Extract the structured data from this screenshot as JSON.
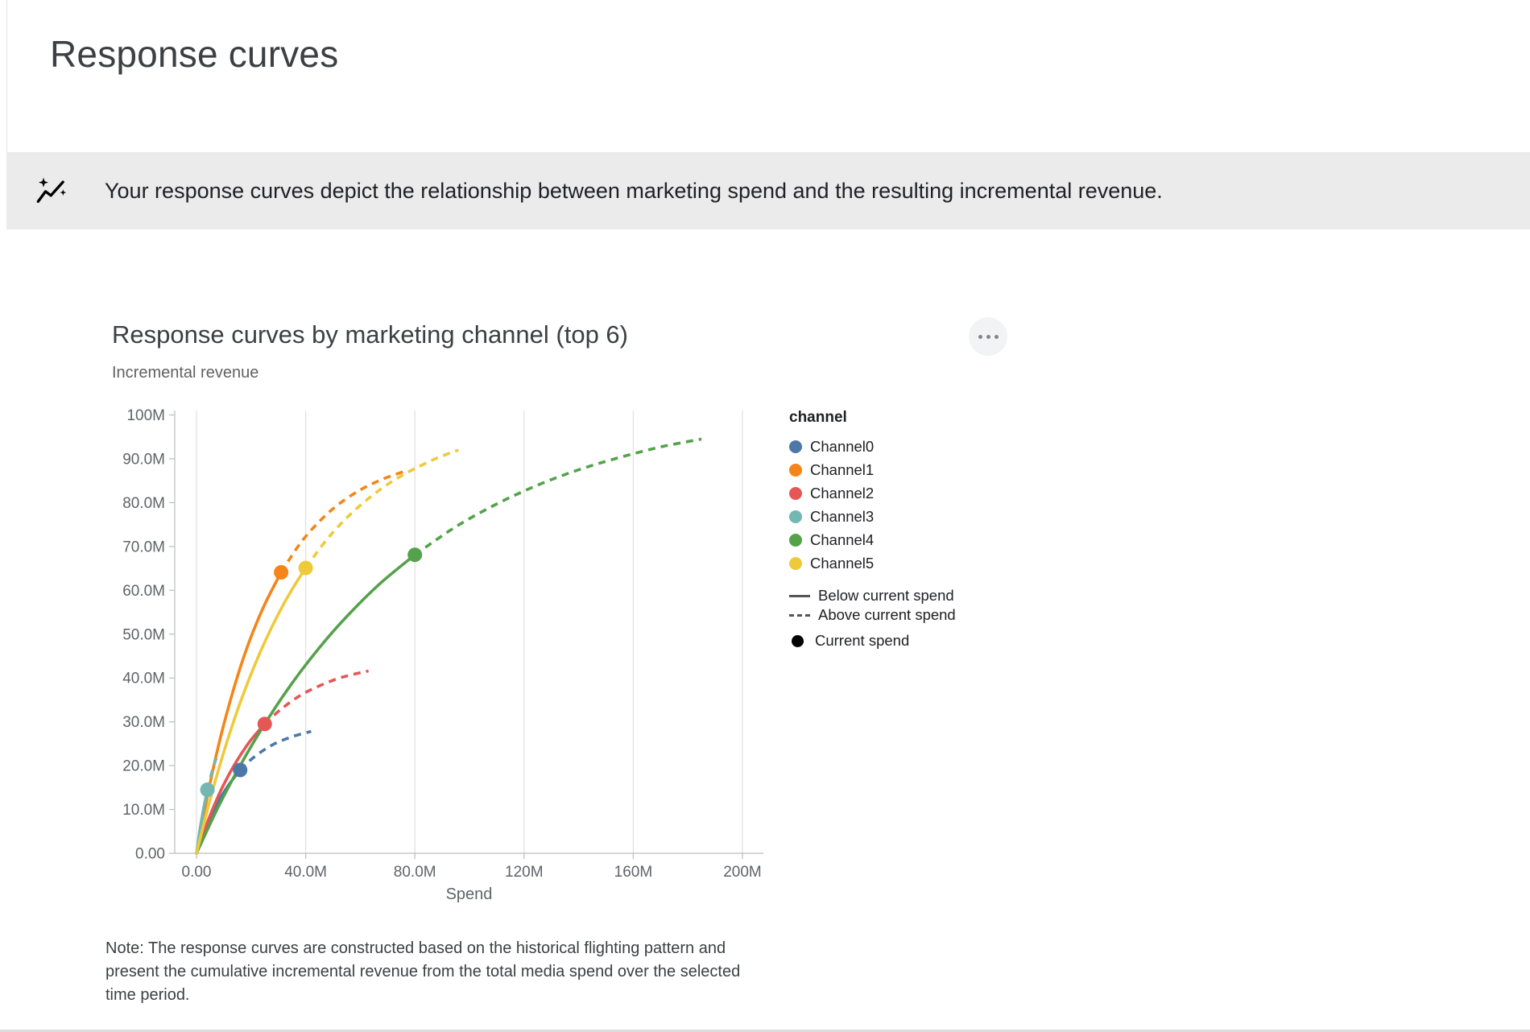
{
  "page": {
    "title": "Response curves"
  },
  "banner": {
    "icon": "insights-icon",
    "text": "Your response curves depict the relationship between marketing spend and the resulting incremental revenue."
  },
  "card": {
    "menu_icon": "more-options-icon",
    "note": "Note: The response curves are constructed based on the historical flighting pattern and present the cumulative incremental revenue from the total media spend over the selected time period."
  },
  "chart_data": {
    "type": "line",
    "title": "Response curves by marketing channel (top 6)",
    "x_axis_label": "Spend",
    "y_axis_label": "Incremental revenue",
    "units": "M = millions",
    "xlim": [
      -8,
      208
    ],
    "ylim": [
      0,
      101
    ],
    "grid": "vertical-only",
    "legend_position": "right",
    "x_ticks": {
      "values": [
        0,
        40,
        80,
        120,
        160,
        200
      ],
      "labels": [
        "0.00",
        "40.0M",
        "80.0M",
        "120M",
        "160M",
        "200M"
      ]
    },
    "y_ticks": {
      "values": [
        0,
        10,
        20,
        30,
        40,
        50,
        60,
        70,
        80,
        90,
        100
      ],
      "labels": [
        "0.00",
        "10.0M",
        "20.0M",
        "30.0M",
        "40.0M",
        "50.0M",
        "60.0M",
        "70.0M",
        "80.0M",
        "90.0M",
        "100M"
      ]
    },
    "legend": {
      "title": "channel",
      "line_styles": [
        {
          "style": "solid",
          "label": "Below current spend"
        },
        {
          "style": "dashed",
          "label": "Above current spend"
        },
        {
          "style": "point",
          "label": "Current spend"
        }
      ]
    },
    "series": [
      {
        "name": "Channel0",
        "color": "#4c78a8",
        "current_spend": [
          16,
          19.0
        ],
        "points_below": [
          [
            0,
            0
          ],
          [
            3,
            5.1
          ],
          [
            6,
            9.4
          ],
          [
            9,
            12.9
          ],
          [
            12,
            15.8
          ],
          [
            16,
            19.0
          ]
        ],
        "points_above": [
          [
            16,
            19.0
          ],
          [
            20,
            21.4
          ],
          [
            25,
            23.7
          ],
          [
            30,
            25.4
          ],
          [
            36,
            26.8
          ],
          [
            42,
            27.8
          ]
        ]
      },
      {
        "name": "Channel1",
        "color": "#f58518",
        "current_spend": [
          31,
          64.1
        ],
        "points_below": [
          [
            0,
            0
          ],
          [
            4,
            13.1
          ],
          [
            8,
            24.4
          ],
          [
            12,
            34.0
          ],
          [
            16,
            42.3
          ],
          [
            20,
            49.4
          ],
          [
            25,
            56.8
          ],
          [
            31,
            64.1
          ]
        ],
        "points_above": [
          [
            31,
            64.1
          ],
          [
            38,
            70.7
          ],
          [
            45,
            75.7
          ],
          [
            52,
            79.6
          ],
          [
            60,
            82.9
          ],
          [
            68,
            85.3
          ],
          [
            76,
            87.1
          ]
        ]
      },
      {
        "name": "Channel2",
        "color": "#e45756",
        "current_spend": [
          25,
          29.5
        ],
        "points_below": [
          [
            0,
            0
          ],
          [
            4,
            7.1
          ],
          [
            8,
            13.1
          ],
          [
            12,
            18.1
          ],
          [
            16,
            22.3
          ],
          [
            20,
            25.9
          ],
          [
            25,
            29.5
          ]
        ],
        "points_above": [
          [
            25,
            29.5
          ],
          [
            31,
            32.9
          ],
          [
            38,
            36.0
          ],
          [
            45,
            38.2
          ],
          [
            52,
            39.9
          ],
          [
            58,
            40.9
          ],
          [
            63,
            41.6
          ]
        ]
      },
      {
        "name": "Channel3",
        "color": "#72b7b2",
        "current_spend": [
          4,
          14.5
        ],
        "points_below": [
          [
            0,
            0
          ],
          [
            1,
            4.4
          ],
          [
            2,
            8.2
          ],
          [
            3,
            11.5
          ],
          [
            4,
            14.5
          ]
        ],
        "points_above": [
          [
            4,
            14.5
          ],
          [
            5.5,
            18.2
          ],
          [
            7,
            21.2
          ],
          [
            8,
            23.0
          ]
        ]
      },
      {
        "name": "Channel4",
        "color": "#54a24b",
        "current_spend": [
          80,
          68.1
        ],
        "points_below": [
          [
            0,
            0
          ],
          [
            8,
            10.6
          ],
          [
            16,
            20.0
          ],
          [
            25,
            29.5
          ],
          [
            35,
            38.8
          ],
          [
            45,
            46.9
          ],
          [
            55,
            54.0
          ],
          [
            67,
            61.4
          ],
          [
            80,
            68.1
          ]
        ],
        "points_above": [
          [
            80,
            68.1
          ],
          [
            95,
            74.5
          ],
          [
            110,
            79.7
          ],
          [
            125,
            84.0
          ],
          [
            140,
            87.5
          ],
          [
            155,
            90.3
          ],
          [
            170,
            92.7
          ],
          [
            185,
            94.5
          ]
        ]
      },
      {
        "name": "Channel5",
        "color": "#eeca3b",
        "current_spend": [
          40,
          65.1
        ],
        "points_below": [
          [
            0,
            0
          ],
          [
            5,
            12.3
          ],
          [
            10,
            23.1
          ],
          [
            15,
            32.6
          ],
          [
            20,
            40.9
          ],
          [
            25,
            48.2
          ],
          [
            30,
            54.6
          ],
          [
            35,
            60.2
          ],
          [
            40,
            65.1
          ]
        ],
        "points_above": [
          [
            40,
            65.1
          ],
          [
            47,
            71.0
          ],
          [
            54,
            75.9
          ],
          [
            61,
            79.9
          ],
          [
            68,
            83.3
          ],
          [
            75,
            86.1
          ],
          [
            82,
            88.4
          ],
          [
            89,
            90.4
          ],
          [
            96,
            92.0
          ]
        ]
      }
    ]
  }
}
